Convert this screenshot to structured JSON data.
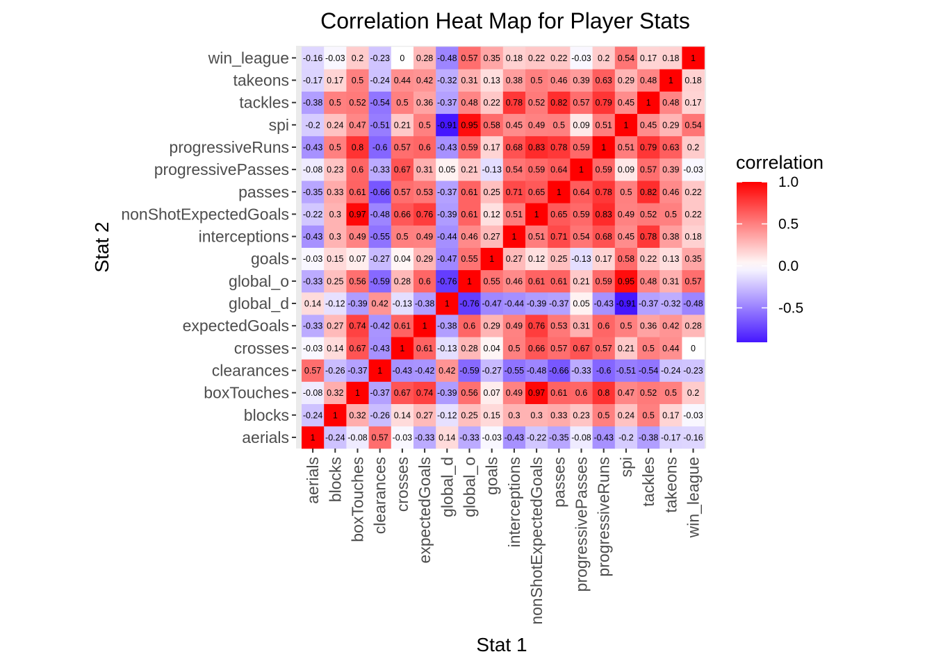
{
  "chart_data": {
    "type": "heatmap",
    "title": "Correlation Heat Map for Player Stats",
    "xlabel": "Stat 1",
    "ylabel": "Stat 2",
    "stats": [
      "aerials",
      "blocks",
      "boxTouches",
      "clearances",
      "crosses",
      "expectedGoals",
      "global_d",
      "global_o",
      "goals",
      "interceptions",
      "nonShotExpectedGoals",
      "passes",
      "progressivePasses",
      "progressiveRuns",
      "spi",
      "tackles",
      "takeons",
      "win_league"
    ],
    "matrix_labels": [
      [
        "1",
        "-0.24",
        "-0.08",
        "0.57",
        "-0.03",
        "-0.33",
        "0.14",
        "-0.33",
        "-0.03",
        "-0.43",
        "-0.22",
        "-0.35",
        "-0.08",
        "-0.43",
        "-0.2",
        "-0.38",
        "-0.17",
        "-0.16"
      ],
      [
        "-0.24",
        "1",
        "0.32",
        "-0.26",
        "0.14",
        "0.27",
        "-0.12",
        "0.25",
        "0.15",
        "0.3",
        "0.3",
        "0.33",
        "0.23",
        "0.5",
        "0.24",
        "0.5",
        "0.17",
        "-0.03"
      ],
      [
        "-0.08",
        "0.32",
        "1",
        "-0.37",
        "0.67",
        "0.74",
        "-0.39",
        "0.56",
        "0.07",
        "0.49",
        "0.97",
        "0.61",
        "0.6",
        "0.8",
        "0.47",
        "0.52",
        "0.5",
        "0.2"
      ],
      [
        "0.57",
        "-0.26",
        "-0.37",
        "1",
        "-0.43",
        "-0.42",
        "0.42",
        "-0.59",
        "-0.27",
        "-0.55",
        "-0.48",
        "-0.66",
        "-0.33",
        "-0.6",
        "-0.51",
        "-0.54",
        "-0.24",
        "-0.23"
      ],
      [
        "-0.03",
        "0.14",
        "0.67",
        "-0.43",
        "1",
        "0.61",
        "-0.13",
        "0.28",
        "0.04",
        "0.5",
        "0.66",
        "0.57",
        "0.67",
        "0.57",
        "0.21",
        "0.5",
        "0.44",
        "0"
      ],
      [
        "-0.33",
        "0.27",
        "0.74",
        "-0.42",
        "0.61",
        "1",
        "-0.38",
        "0.6",
        "0.29",
        "0.49",
        "0.76",
        "0.53",
        "0.31",
        "0.6",
        "0.5",
        "0.36",
        "0.42",
        "0.28"
      ],
      [
        "0.14",
        "-0.12",
        "-0.39",
        "0.42",
        "-0.13",
        "-0.38",
        "1",
        "-0.76",
        "-0.47",
        "-0.44",
        "-0.39",
        "-0.37",
        "0.05",
        "-0.43",
        "-0.91",
        "-0.37",
        "-0.32",
        "-0.48"
      ],
      [
        "-0.33",
        "0.25",
        "0.56",
        "-0.59",
        "0.28",
        "0.6",
        "-0.76",
        "1",
        "0.55",
        "0.46",
        "0.61",
        "0.61",
        "0.21",
        "0.59",
        "0.95",
        "0.48",
        "0.31",
        "0.57"
      ],
      [
        "-0.03",
        "0.15",
        "0.07",
        "-0.27",
        "0.04",
        "0.29",
        "-0.47",
        "0.55",
        "1",
        "0.27",
        "0.12",
        "0.25",
        "-0.13",
        "0.17",
        "0.58",
        "0.22",
        "0.13",
        "0.35"
      ],
      [
        "-0.43",
        "0.3",
        "0.49",
        "-0.55",
        "0.5",
        "0.49",
        "-0.44",
        "0.46",
        "0.27",
        "1",
        "0.51",
        "0.71",
        "0.54",
        "0.68",
        "0.45",
        "0.78",
        "0.38",
        "0.18"
      ],
      [
        "-0.22",
        "0.3",
        "0.97",
        "-0.48",
        "0.66",
        "0.76",
        "-0.39",
        "0.61",
        "0.12",
        "0.51",
        "1",
        "0.65",
        "0.59",
        "0.83",
        "0.49",
        "0.52",
        "0.5",
        "0.22"
      ],
      [
        "-0.35",
        "0.33",
        "0.61",
        "-0.66",
        "0.57",
        "0.53",
        "-0.37",
        "0.61",
        "0.25",
        "0.71",
        "0.65",
        "1",
        "0.64",
        "0.78",
        "0.5",
        "0.82",
        "0.46",
        "0.22"
      ],
      [
        "-0.08",
        "0.23",
        "0.6",
        "-0.33",
        "0.67",
        "0.31",
        "0.05",
        "0.21",
        "-0.13",
        "0.54",
        "0.59",
        "0.64",
        "1",
        "0.59",
        "0.09",
        "0.57",
        "0.39",
        "-0.03"
      ],
      [
        "-0.43",
        "0.5",
        "0.8",
        "-0.6",
        "0.57",
        "0.6",
        "-0.43",
        "0.59",
        "0.17",
        "0.68",
        "0.83",
        "0.78",
        "0.59",
        "1",
        "0.51",
        "0.79",
        "0.63",
        "0.2"
      ],
      [
        "-0.2",
        "0.24",
        "0.47",
        "-0.51",
        "0.21",
        "0.5",
        "-0.91",
        "0.95",
        "0.58",
        "0.45",
        "0.49",
        "0.5",
        "0.09",
        "0.51",
        "1",
        "0.45",
        "0.29",
        "0.54"
      ],
      [
        "-0.38",
        "0.5",
        "0.52",
        "-0.54",
        "0.5",
        "0.36",
        "-0.37",
        "0.48",
        "0.22",
        "0.78",
        "0.52",
        "0.82",
        "0.57",
        "0.79",
        "0.45",
        "1",
        "0.48",
        "0.17"
      ],
      [
        "-0.17",
        "0.17",
        "0.5",
        "-0.24",
        "0.44",
        "0.42",
        "-0.32",
        "0.31",
        "0.13",
        "0.38",
        "0.5",
        "0.46",
        "0.39",
        "0.63",
        "0.29",
        "0.48",
        "1",
        "0.18"
      ],
      [
        "-0.16",
        "-0.03",
        "0.2",
        "-0.23",
        "0",
        "0.28",
        "-0.48",
        "0.57",
        "0.35",
        "0.18",
        "0.22",
        "0.22",
        "-0.03",
        "0.2",
        "0.54",
        "0.17",
        "0.18",
        "1"
      ]
    ],
    "legend": {
      "title": "correlation",
      "ticks": [
        "1.0",
        "0.5",
        "0.0",
        "-0.5"
      ],
      "tick_values": [
        1.0,
        0.5,
        0.0,
        -0.5
      ],
      "range": [
        -0.91,
        1.0
      ],
      "low_color": "#3300ff",
      "mid_color": "#ffffff",
      "high_color": "#ff0000"
    },
    "panel_background": "#ebebeb",
    "grid": true,
    "legend_placement": "right"
  }
}
